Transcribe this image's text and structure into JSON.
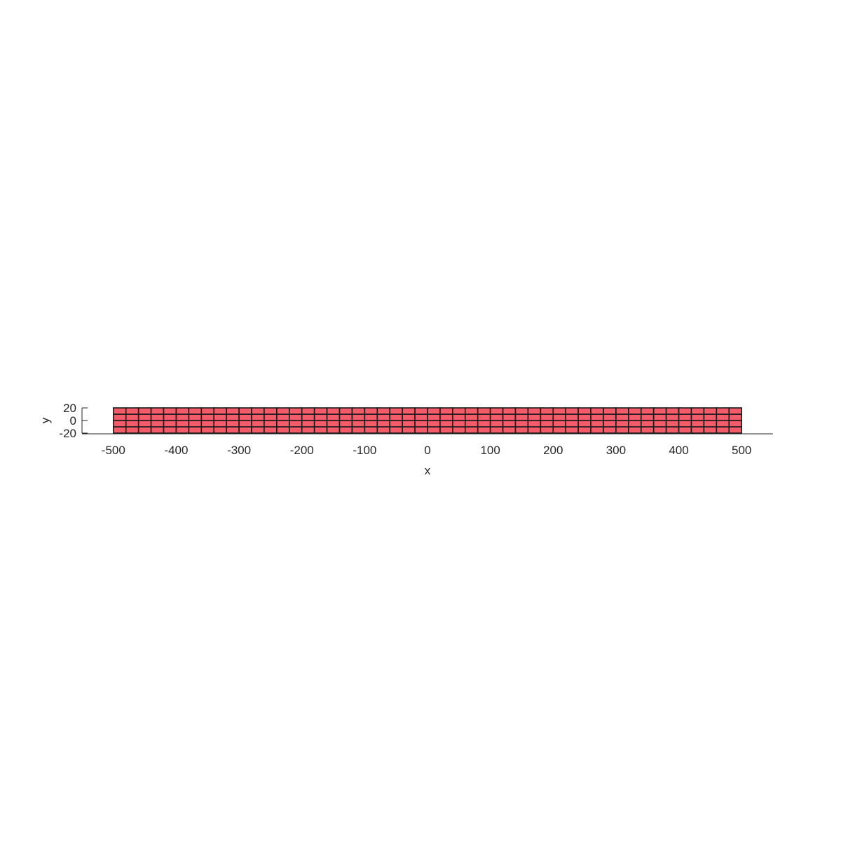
{
  "figure": {
    "background": "#ffffff",
    "mesh_color": "#f45b69",
    "edge_color": "#1a1a1a",
    "axis_color": "#262626"
  },
  "mesh": {
    "x_min": -500,
    "x_max": 500,
    "y_min": -20,
    "y_max": 20,
    "nx": 50,
    "ny": 4
  },
  "axes": {
    "xlabel": "x",
    "ylabel": "y",
    "xlim": [
      -550,
      550
    ],
    "ylim": [
      -20,
      20
    ],
    "xticks": [
      -500,
      -400,
      -300,
      -200,
      -100,
      0,
      100,
      200,
      300,
      400,
      500
    ],
    "xtick_labels": [
      "-500",
      "-400",
      "-300",
      "-200",
      "-100",
      "0",
      "100",
      "200",
      "300",
      "400",
      "500"
    ],
    "yticks": [
      -20,
      0,
      20
    ],
    "ytick_labels": [
      "-20",
      "0",
      "20"
    ]
  }
}
